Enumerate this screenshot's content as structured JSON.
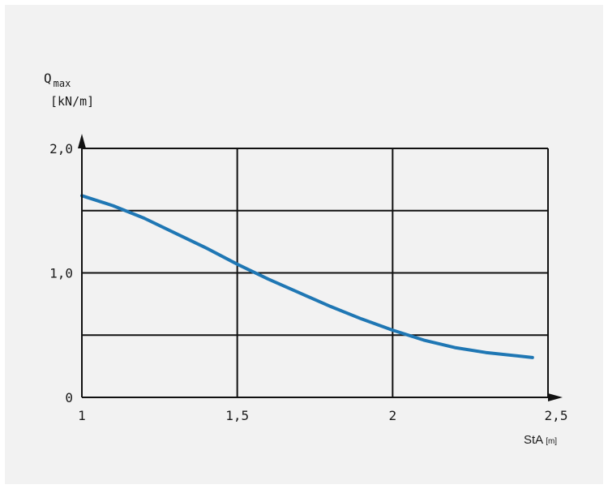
{
  "chart_data": {
    "type": "line",
    "xlabel": "StA",
    "xlabel_unit": "[m]",
    "ylabel_main": "Q",
    "ylabel_sub": "max",
    "ylabel_unit": "[kN/m]",
    "x_ticks": [
      "1",
      "1,5",
      "2",
      "2,5"
    ],
    "x_tick_values": [
      1,
      1.5,
      2,
      2.5
    ],
    "y_ticks": [
      "0",
      "1,0",
      "2,0"
    ],
    "y_tick_values": [
      0,
      1,
      2
    ],
    "xlim": [
      1,
      2.5
    ],
    "ylim": [
      0,
      2
    ],
    "grid": true,
    "series": [
      {
        "color": "#1f77b4",
        "x": [
          1.0,
          1.1,
          1.2,
          1.3,
          1.4,
          1.5,
          1.6,
          1.7,
          1.8,
          1.9,
          2.0,
          2.1,
          2.2,
          2.3,
          2.45
        ],
        "y": [
          1.62,
          1.54,
          1.44,
          1.32,
          1.2,
          1.07,
          0.95,
          0.84,
          0.73,
          0.63,
          0.54,
          0.46,
          0.4,
          0.36,
          0.32
        ]
      }
    ]
  }
}
